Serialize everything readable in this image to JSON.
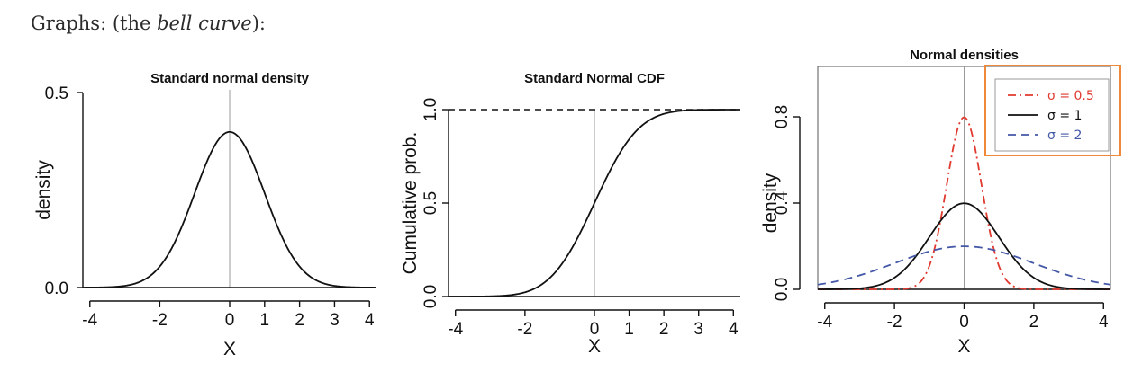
{
  "caption": {
    "prefix": "Graphs: (the ",
    "emph": "bell curve",
    "suffix": "):"
  },
  "chart_data": [
    {
      "type": "line",
      "title": "Standard normal density",
      "xlabel": "X",
      "ylabel": "density",
      "xlim": [
        -4.2,
        4.2
      ],
      "ylim": [
        0,
        0.5
      ],
      "x_ticks": [
        -4,
        -2,
        0,
        1,
        2,
        3,
        4
      ],
      "y_ticks": [
        "0.0",
        "0.5"
      ],
      "reference_lines": [
        {
          "orientation": "vertical",
          "value": 0,
          "style": "solid-gray"
        },
        {
          "orientation": "horizontal",
          "value": 0,
          "style": "solid-black"
        }
      ],
      "series": [
        {
          "function": "normal_pdf",
          "mean": 0,
          "sd": 1,
          "peak": 0.399,
          "color": "#111111",
          "dash": "solid"
        }
      ]
    },
    {
      "type": "line",
      "title": "Standard Normal CDF",
      "xlabel": "X",
      "ylabel": "Cumulative prob.",
      "xlim": [
        -4.2,
        4.2
      ],
      "ylim": [
        0,
        1
      ],
      "x_ticks": [
        -4,
        -2,
        0,
        1,
        2,
        3,
        4
      ],
      "y_ticks": [
        "0.0",
        "0.5",
        "1.0"
      ],
      "reference_lines": [
        {
          "orientation": "vertical",
          "value": 0,
          "style": "solid-gray"
        },
        {
          "orientation": "horizontal",
          "value": 0,
          "style": "solid-black"
        },
        {
          "orientation": "horizontal",
          "value": 1,
          "style": "dashed-black"
        }
      ],
      "series": [
        {
          "function": "normal_cdf",
          "mean": 0,
          "sd": 1,
          "color": "#111111",
          "dash": "solid"
        }
      ]
    },
    {
      "type": "line",
      "title": "Normal densities",
      "xlabel": "X",
      "ylabel": "density",
      "xlim": [
        -4.2,
        4.2
      ],
      "ylim": [
        0,
        0.9
      ],
      "x_ticks": [
        -4,
        -2,
        0,
        2,
        4
      ],
      "y_ticks": [
        "0.0",
        "0.4",
        "0.8"
      ],
      "boxed": true,
      "legend_position": "top-right",
      "legend_highlight_color": "#f0883a",
      "reference_lines": [
        {
          "orientation": "vertical",
          "value": 0,
          "style": "solid-gray"
        },
        {
          "orientation": "horizontal",
          "value": 0,
          "style": "solid-black"
        }
      ],
      "series": [
        {
          "name": "σ = 0.5",
          "function": "normal_pdf",
          "mean": 0,
          "sd": 0.5,
          "peak": 0.798,
          "color": "#e0392f",
          "dash": "dashdot"
        },
        {
          "name": "σ = 1",
          "function": "normal_pdf",
          "mean": 0,
          "sd": 1,
          "peak": 0.399,
          "color": "#111111",
          "dash": "solid"
        },
        {
          "name": "σ = 2",
          "function": "normal_pdf",
          "mean": 0,
          "sd": 2,
          "peak": 0.199,
          "color": "#4458a8",
          "dash": "dashed"
        }
      ]
    }
  ]
}
